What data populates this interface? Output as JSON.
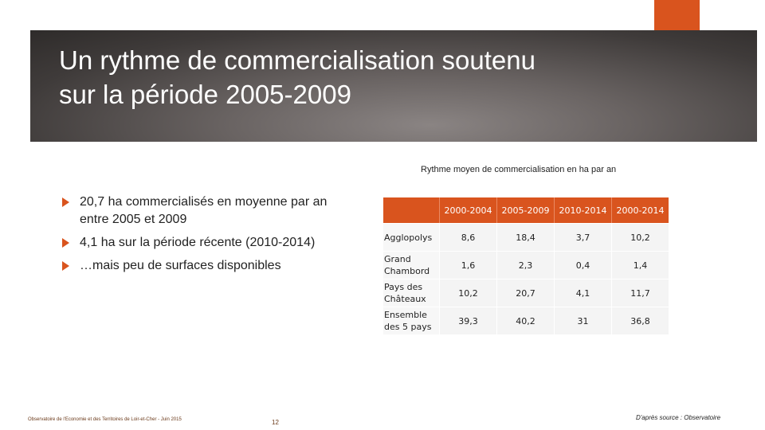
{
  "slide": {
    "title": "Un rythme de commercialisation soutenu\nsur la période 2005-2009"
  },
  "bullets": [
    {
      "text": "20,7 ha commercialisés en moyenne par an entre 2005 et 2009"
    },
    {
      "text": "4,1 ha sur la période récente (2010-2014)"
    },
    {
      "text": "…mais peu de surfaces disponibles"
    }
  ],
  "table": {
    "caption": "Rythme moyen de commercialisation en ha par an",
    "corner": "",
    "headers": [
      "2000-2004",
      "2005-2009",
      "2010-2014",
      "2000-2014"
    ],
    "rows": [
      {
        "label": "Agglopolys",
        "values": [
          "8,6",
          "18,4",
          "3,7",
          "10,2"
        ]
      },
      {
        "label": "Grand Chambord",
        "values": [
          "1,6",
          "2,3",
          "0,4",
          "1,4"
        ]
      },
      {
        "label": "Pays des Châteaux",
        "values": [
          "10,2",
          "20,7",
          "4,1",
          "11,7"
        ]
      },
      {
        "label": "Ensemble des 5 pays",
        "values": [
          "39,3",
          "40,2",
          "31",
          "36,8"
        ]
      }
    ]
  },
  "footer": {
    "left": "Observatoire de l'Economie et des Territoires de Loir-et-Cher - Juin 2015",
    "page": "12",
    "source": "D'après source : Observatoire"
  },
  "colors": {
    "accent": "#d9541e",
    "title_text": "#ffffff",
    "table_cell": "#f4f4f4"
  }
}
